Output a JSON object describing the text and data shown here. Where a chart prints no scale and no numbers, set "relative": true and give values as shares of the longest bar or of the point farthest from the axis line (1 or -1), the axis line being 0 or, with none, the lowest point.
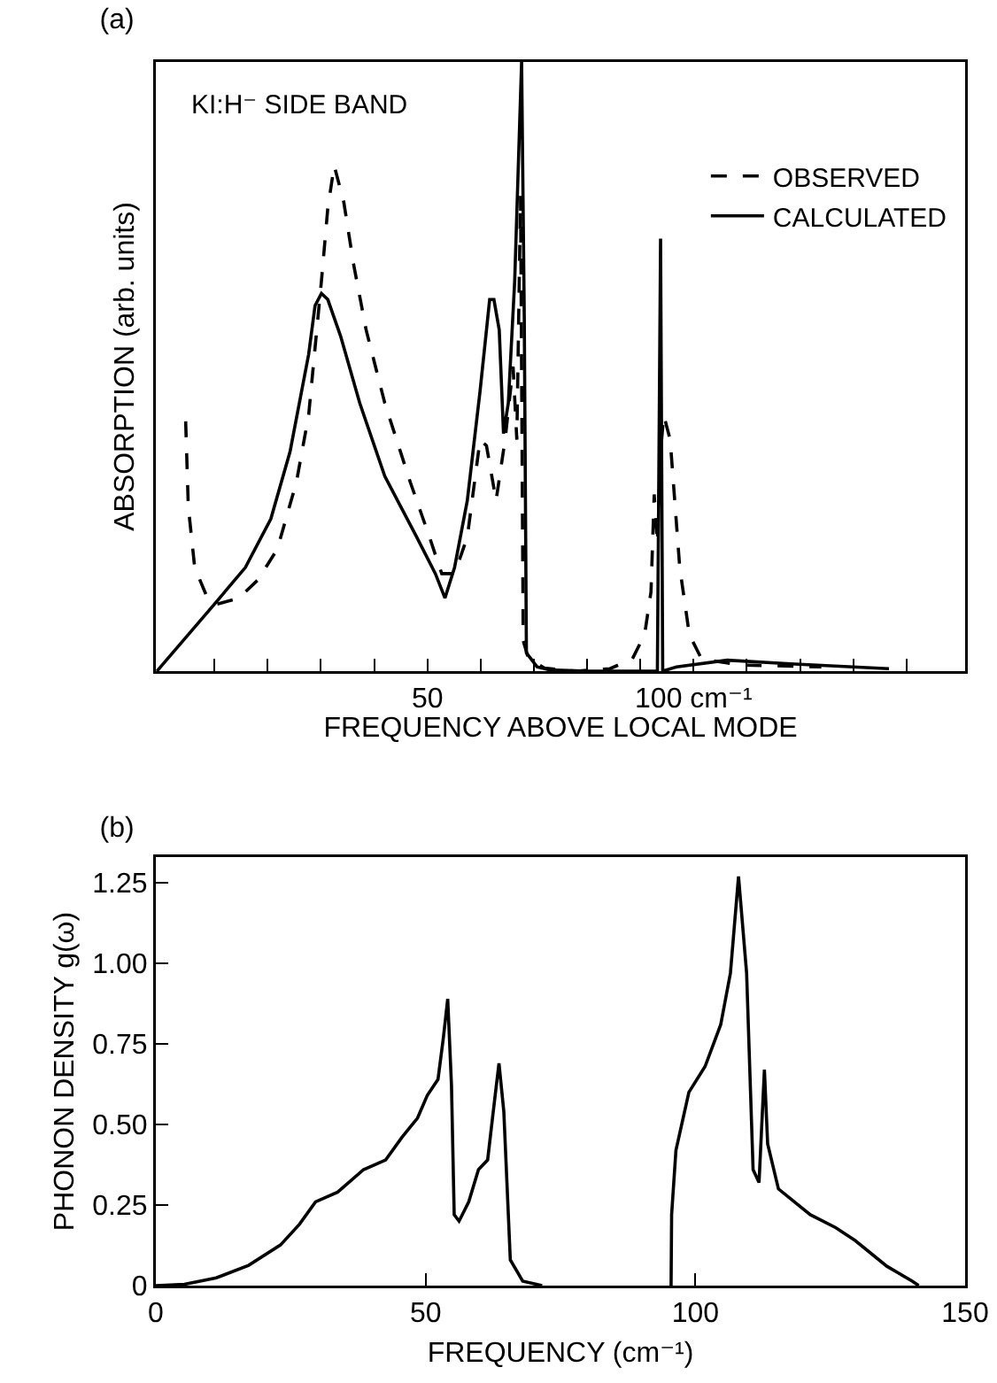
{
  "chart_data": [
    {
      "type": "line",
      "title": "(a)",
      "xlabel": "FREQUENCY ABOVE LOCAL MODE",
      "ylabel": "ABSORPTION (arb. units)",
      "relative": true,
      "legend": "top right",
      "xlim": [
        -1,
        151
      ],
      "xticks": [
        {
          "value": 10,
          "label": null
        },
        {
          "value": 20,
          "label": null
        },
        {
          "value": 30,
          "label": null
        },
        {
          "value": 40,
          "label": null
        },
        50,
        {
          "value": 60,
          "label": null
        },
        {
          "value": 70,
          "label": null
        },
        {
          "value": 80,
          "label": null
        },
        {
          "value": 90,
          "label": null
        },
        {
          "value": 100,
          "label": "100 cm⁻¹"
        },
        {
          "value": 110,
          "label": null
        },
        {
          "value": 120,
          "label": null
        },
        {
          "value": 130,
          "label": null
        },
        {
          "value": 140,
          "label": null
        }
      ],
      "annotations": [
        "KI:H⁻ SIDE BAND"
      ],
      "series": [
        {
          "name": "OBSERVED",
          "color": "#000000",
          "line_style": "dashed",
          "x": [
            4.6,
            5.1,
            6.3,
            8.7,
            10.5,
            14.6,
            18.2,
            21.8,
            25.4,
            27.7,
            30.1,
            31.3,
            32.5,
            34.3,
            36.1,
            38.5,
            42.0,
            46.8,
            50.4,
            52.7,
            55.1,
            57.5,
            59.9,
            61.1,
            62.9,
            64.6,
            66.1,
            66.8,
            67.5,
            68.0,
            69.0,
            72.0,
            78.0,
            84.3,
            88.5,
            90.8,
            92.0,
            92.6,
            93.2,
            93.8,
            94.4,
            95.6,
            97.4,
            99.2,
            101.5,
            108.7,
            124.0
          ],
          "values": [
            0.41,
            0.27,
            0.17,
            0.12,
            0.11,
            0.12,
            0.15,
            0.2,
            0.31,
            0.42,
            0.64,
            0.76,
            0.83,
            0.77,
            0.67,
            0.56,
            0.44,
            0.31,
            0.22,
            0.16,
            0.16,
            0.22,
            0.38,
            0.37,
            0.28,
            0.38,
            0.5,
            0.38,
            0.78,
            0.05,
            0.02,
            0.005,
            0,
            0.004,
            0.02,
            0.06,
            0.13,
            0.29,
            0.21,
            0.36,
            0.42,
            0.38,
            0.17,
            0.06,
            0.02,
            0.01,
            0.007
          ]
        },
        {
          "name": "CALCULATED",
          "color": "#000000",
          "line_style": "solid",
          "x": [
            -0.8,
            10,
            15.8,
            20.6,
            24.2,
            27.7,
            28.9,
            30.1,
            31.3,
            33.7,
            37.3,
            42.0,
            48.0,
            51.5,
            53.3,
            55.1,
            57.5,
            59.9,
            61.7,
            62.5,
            63.5,
            64.3,
            65.2,
            66.4,
            67.3,
            67.7,
            68.2,
            68.6,
            70.6,
            73.0,
            80.0,
            93.2,
            93.8,
            94.2,
            96.8,
            106.3,
            118.2,
            136.7
          ],
          "values": [
            0,
            0.11,
            0.17,
            0.25,
            0.36,
            0.52,
            0.6,
            0.62,
            0.61,
            0.55,
            0.44,
            0.32,
            0.22,
            0.16,
            0.12,
            0.17,
            0.28,
            0.46,
            0.61,
            0.61,
            0.56,
            0.39,
            0.44,
            0.64,
            0.89,
            1,
            0.58,
            0.03,
            0.007,
            0.002,
            0,
            0,
            0.71,
            0,
            0.007,
            0.018,
            0.012,
            0.004
          ]
        }
      ]
    },
    {
      "type": "line",
      "title": "(b)",
      "xlabel": "FREQUENCY (cm⁻¹)",
      "ylabel": "PHONON DENSITY g(ω)",
      "xlim": [
        0,
        150
      ],
      "xticks": [
        0,
        50,
        100,
        150
      ],
      "ylim": [
        0,
        1.33
      ],
      "yticks": [
        0,
        0.25,
        {
          "value": 0.5,
          "label": "0.50"
        },
        0.75,
        {
          "value": 1,
          "label": "1.00"
        },
        1.25
      ],
      "series": [
        {
          "color": "#000000",
          "line_style": "solid",
          "x": [
            0,
            5.3,
            11.2,
            17.2,
            23.1,
            26.6,
            29.6,
            33.7,
            38.5,
            42.6,
            45.6,
            48.5,
            50.3,
            52.3,
            53.3,
            54.1,
            54.8,
            55.3,
            56.2,
            58.0,
            59.8,
            61.5,
            62.4,
            63.6,
            64.5,
            65.7,
            68.0,
            71.6,
            80,
            95.5,
            95.6,
            96.4,
            98.8,
            101.8,
            104.7,
            106.5,
            108.0,
            109.5,
            110.7,
            111.8,
            112.8,
            113.4,
            115.4,
            121.3,
            126.0,
            129.6,
            135.5,
            140.2,
            141.4
          ],
          "values": [
            0,
            0.004,
            0.024,
            0.063,
            0.126,
            0.19,
            0.26,
            0.29,
            0.36,
            0.39,
            0.46,
            0.52,
            0.59,
            0.64,
            0.77,
            0.89,
            0.62,
            0.22,
            0.2,
            0.26,
            0.36,
            0.39,
            0.52,
            0.69,
            0.54,
            0.08,
            0.014,
            0,
            null,
            0,
            0.22,
            0.42,
            0.6,
            0.68,
            0.81,
            0.97,
            1.27,
            0.97,
            0.36,
            0.32,
            0.67,
            0.44,
            0.3,
            0.22,
            0.18,
            0.14,
            0.06,
            0.014,
            0
          ]
        }
      ]
    }
  ]
}
